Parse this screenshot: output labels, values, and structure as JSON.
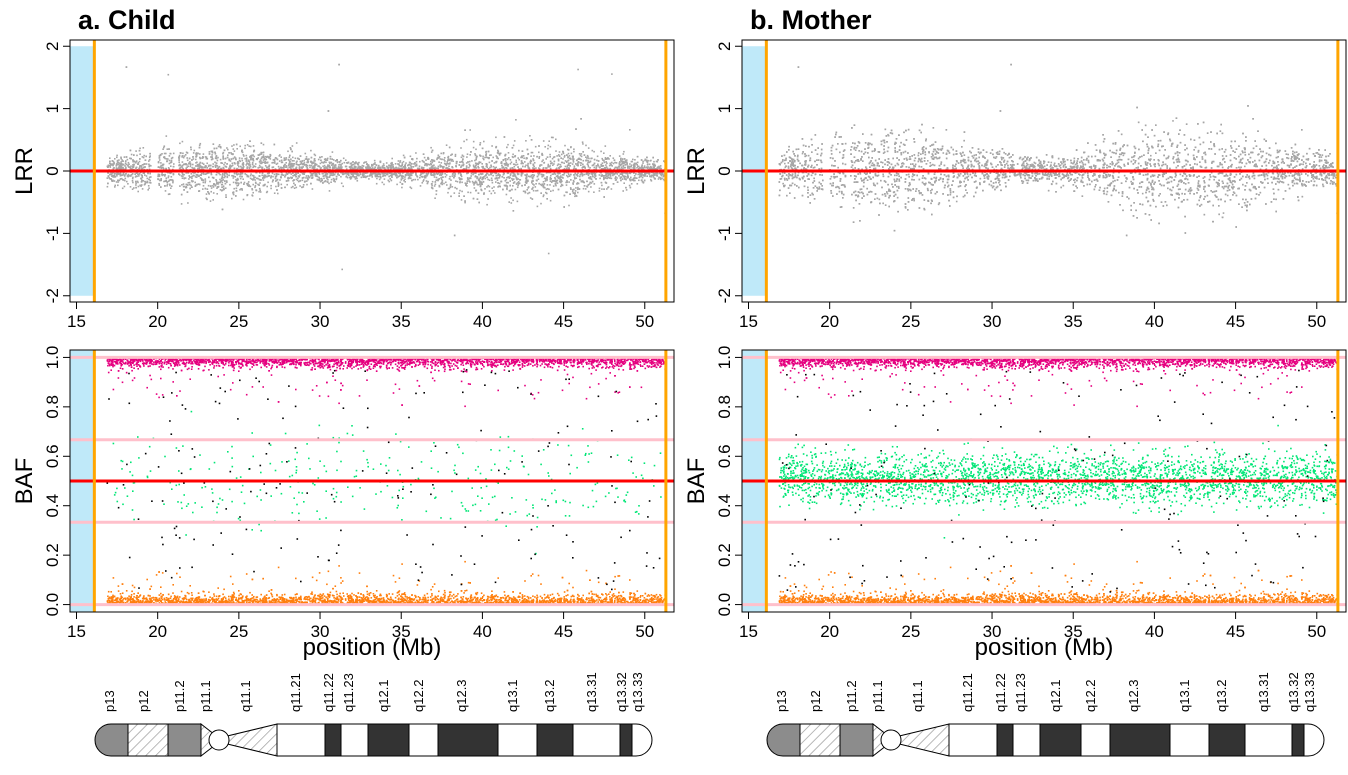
{
  "chart_data": [
    {
      "type": "scatter",
      "title": "a. Child",
      "panels": [
        {
          "id": "lrr",
          "ylabel": "LRR",
          "xlim": [
            14.6,
            51.8
          ],
          "ylim": [
            -2.1,
            2.1
          ],
          "yticks": [
            -2,
            -1,
            0,
            1,
            2
          ],
          "xticks": [
            15,
            20,
            25,
            30,
            35,
            40,
            45,
            50
          ],
          "series": [
            {
              "color": "#a6a6a6",
              "x_range": [
                16.9,
                51.3
              ],
              "y_center": 0.0,
              "y_spread": 0.18,
              "gaps": [
                [
                  19.6,
                  20.0
                ],
                [
                  21.0,
                  21.3
                ]
              ]
            }
          ],
          "hlines": [
            {
              "y": 0,
              "color": "#ff0000"
            }
          ],
          "vlines": [
            {
              "x": 16.1,
              "color": "#ffa500"
            },
            {
              "x": 51.3,
              "color": "#ffa500"
            }
          ],
          "shaded_region": {
            "x": [
              14.6,
              16.05
            ],
            "color": "#bfe9f9"
          }
        },
        {
          "id": "baf",
          "ylabel": "BAF",
          "xlabel": "position (Mb)",
          "xlim": [
            14.6,
            51.8
          ],
          "ylim": [
            -0.03,
            1.03
          ],
          "yticks": [
            0.0,
            0.2,
            0.4,
            0.6,
            0.8,
            1.0
          ],
          "xticks": [
            15,
            20,
            25,
            30,
            35,
            40,
            45,
            50
          ],
          "series": [
            {
              "color": "#e5007f",
              "x_range": [
                16.9,
                51.3
              ],
              "y_center": 0.975,
              "y_spread": 0.02,
              "density": "high"
            },
            {
              "color": "#ff7f0e",
              "x_range": [
                16.9,
                51.3
              ],
              "y_center": 0.015,
              "y_spread": 0.02,
              "density": "high"
            },
            {
              "color": "#00e676",
              "x_range": [
                16.9,
                51.3
              ],
              "y_center": 0.5,
              "y_spread": 0.1,
              "density": "sparse"
            },
            {
              "color": "#000000",
              "x_range": [
                16.9,
                51.3
              ],
              "y_center": 0.5,
              "y_spread": 0.35,
              "density": "sparse"
            }
          ],
          "hlines": [
            {
              "y": 0.0,
              "color": "#ffc0cb"
            },
            {
              "y": 0.333,
              "color": "#ffc0cb"
            },
            {
              "y": 0.667,
              "color": "#ffc0cb"
            },
            {
              "y": 1.0,
              "color": "#ffc0cb"
            },
            {
              "y": 0.5,
              "color": "#ff0000"
            }
          ],
          "vlines": [
            {
              "x": 16.1,
              "color": "#ffa500"
            },
            {
              "x": 51.3,
              "color": "#ffa500"
            }
          ],
          "shaded_region": {
            "x": [
              14.6,
              16.05
            ],
            "color": "#bfe9f9"
          }
        }
      ],
      "ideogram": {
        "bands": [
          "p13",
          "p12",
          "p11.2",
          "p11.1",
          "q11.1",
          "q11.21",
          "q11.22",
          "q11.23",
          "q12.1",
          "q12.2",
          "q12.3",
          "q13.1",
          "q13.2",
          "q13.31",
          "q13.32",
          "q13.33"
        ],
        "band_styles": [
          "gray",
          "hatch",
          "gray",
          "hatch",
          "hatch",
          "white",
          "black",
          "white",
          "black",
          "white",
          "black",
          "white",
          "black",
          "white",
          "black",
          "white"
        ]
      }
    },
    {
      "type": "scatter",
      "title": "b. Mother",
      "panels": [
        {
          "id": "lrr",
          "ylabel": "LRR",
          "xlim": [
            14.6,
            51.8
          ],
          "ylim": [
            -2.1,
            2.1
          ],
          "yticks": [
            -2,
            -1,
            0,
            1,
            2
          ],
          "xticks": [
            15,
            20,
            25,
            30,
            35,
            40,
            45,
            50
          ],
          "series": [
            {
              "color": "#a6a6a6",
              "x_range": [
                16.9,
                51.3
              ],
              "y_center": 0.0,
              "y_spread": 0.28,
              "gaps": [
                [
                  19.6,
                  20.0
                ],
                [
                  21.0,
                  21.3
                ]
              ]
            }
          ],
          "hlines": [
            {
              "y": 0,
              "color": "#ff0000"
            }
          ],
          "vlines": [
            {
              "x": 16.1,
              "color": "#ffa500"
            },
            {
              "x": 51.3,
              "color": "#ffa500"
            }
          ],
          "shaded_region": {
            "x": [
              14.6,
              16.05
            ],
            "color": "#bfe9f9"
          }
        },
        {
          "id": "baf",
          "ylabel": "BAF",
          "xlabel": "position (Mb)",
          "xlim": [
            14.6,
            51.8
          ],
          "ylim": [
            -0.03,
            1.03
          ],
          "yticks": [
            0.0,
            0.2,
            0.4,
            0.6,
            0.8,
            1.0
          ],
          "xticks": [
            15,
            20,
            25,
            30,
            35,
            40,
            45,
            50
          ],
          "series": [
            {
              "color": "#e5007f",
              "x_range": [
                16.9,
                51.3
              ],
              "y_center": 0.975,
              "y_spread": 0.02,
              "density": "high"
            },
            {
              "color": "#ff7f0e",
              "x_range": [
                16.9,
                51.3
              ],
              "y_center": 0.015,
              "y_spread": 0.02,
              "density": "high"
            },
            {
              "color": "#00e676",
              "x_range": [
                16.9,
                51.3
              ],
              "y_center": 0.51,
              "y_spread": 0.05,
              "density": "high"
            },
            {
              "color": "#000000",
              "x_range": [
                16.9,
                51.3
              ],
              "y_center": 0.5,
              "y_spread": 0.35,
              "density": "sparse"
            }
          ],
          "hlines": [
            {
              "y": 0.0,
              "color": "#ffc0cb"
            },
            {
              "y": 0.333,
              "color": "#ffc0cb"
            },
            {
              "y": 0.667,
              "color": "#ffc0cb"
            },
            {
              "y": 1.0,
              "color": "#ffc0cb"
            },
            {
              "y": 0.5,
              "color": "#ff0000"
            }
          ],
          "vlines": [
            {
              "x": 16.1,
              "color": "#ffa500"
            },
            {
              "x": 51.3,
              "color": "#ffa500"
            }
          ],
          "shaded_region": {
            "x": [
              14.6,
              16.05
            ],
            "color": "#bfe9f9"
          }
        }
      ],
      "ideogram": {
        "bands": [
          "p13",
          "p12",
          "p11.2",
          "p11.1",
          "q11.1",
          "q11.21",
          "q11.22",
          "q11.23",
          "q12.1",
          "q12.2",
          "q12.3",
          "q13.1",
          "q13.2",
          "q13.31",
          "q13.32",
          "q13.33"
        ],
        "band_styles": [
          "gray",
          "hatch",
          "gray",
          "hatch",
          "hatch",
          "white",
          "black",
          "white",
          "black",
          "white",
          "black",
          "white",
          "black",
          "white",
          "black",
          "white"
        ]
      }
    }
  ]
}
